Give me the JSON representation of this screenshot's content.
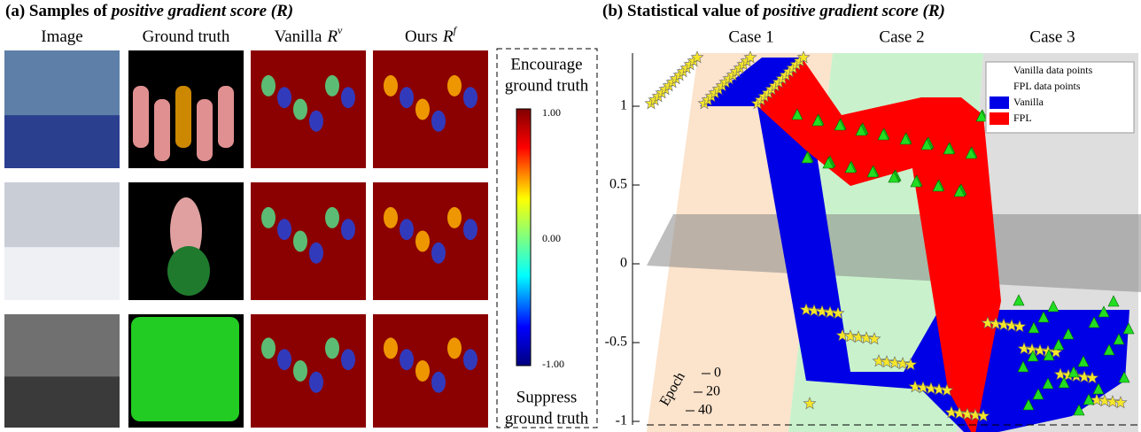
{
  "panel_a": {
    "title_prefix": "(a) Samples of ",
    "title_emphasis": "positive gradient score (R)",
    "column_headers": [
      {
        "label": "Image"
      },
      {
        "label": "Ground truth"
      },
      {
        "label": "Vanilla",
        "symbol": "R",
        "superscript": "v"
      },
      {
        "label": "Ours",
        "symbol": "R",
        "superscript": "f"
      }
    ],
    "colorbar": {
      "top_label": [
        "Encourage",
        "ground truth"
      ],
      "ticks": [
        "1.00",
        "0.00",
        "-1.00"
      ],
      "bottom_label": [
        "Suppress",
        "ground truth"
      ]
    }
  },
  "panel_b": {
    "title_prefix": "(b) Statistical value of ",
    "title_emphasis": "positive gradient score (R)",
    "cases": [
      "Case 1",
      "Case 2",
      "Case 3"
    ],
    "vertical_ticks": [
      "1",
      "0.5",
      "0",
      "-0.5",
      "-1"
    ],
    "epoch_label": "Epoch",
    "epoch_ticks": [
      "0",
      "20",
      "40"
    ],
    "legend": [
      "Vanilla data points",
      "FPL data points",
      "Vanilla",
      "FPL"
    ]
  }
}
